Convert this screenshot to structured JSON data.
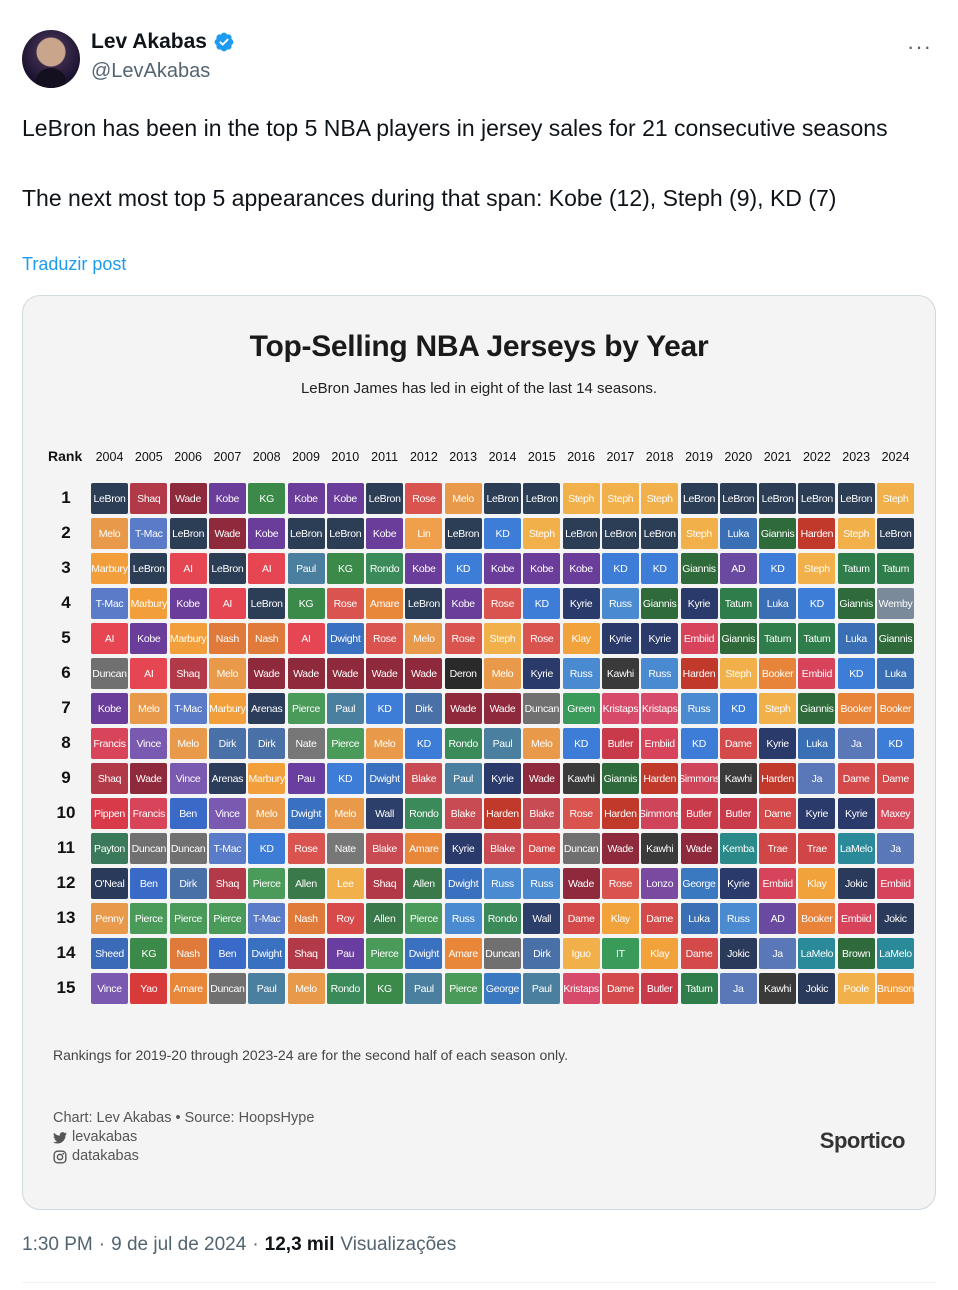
{
  "author": {
    "name": "Lev Akabas",
    "handle": "@LevAkabas",
    "more": "···"
  },
  "tweet": {
    "line1": "LeBron has been in the top 5 NBA players in jersey sales for 21 consecutive seasons",
    "line2": "The next most top 5 appearances during that span: Kobe (12), Steph (9), KD (7)",
    "translate": "Traduzir post"
  },
  "meta": {
    "time": "1:30 PM",
    "date": "9 de jul de 2024",
    "views_count": "12,3 mil",
    "views_label": "Visualizações",
    "sep": "·"
  },
  "colors": {
    "LeBron": "#2c3e55",
    "Shaq": "#b23a48",
    "Wade": "#8e2a3c",
    "Kobe": "#6a3d9a",
    "KG": "#3b8a4a",
    "Melo": "#e89a4a",
    "Steph": "#f2b04a",
    "Rose": "#d9534f",
    "Lin": "#f0a04b",
    "KD": "#3d7dd8",
    "T-Mac": "#5a7bc8",
    "Marbury": "#f29e3a",
    "AI": "#e64552",
    "Luka": "#3a6fb5",
    "Giannis": "#2f6b3a",
    "Harden": "#c0392b",
    "Paul": "#4a7f9f",
    "Rondo": "#3a8a5a",
    "Kyrie": "#2a3a6a",
    "AD": "#6a4aa0",
    "Tatum": "#2e7d4a",
    "Amare": "#e8863a",
    "Russ": "#4a8ad0",
    "Wemby": "#7a8a9a",
    "Nash": "#e07a3a",
    "Dwight": "#3a70c0",
    "Klay": "#f2a23a",
    "Embiid": "#d6435b",
    "Duncan": "#707070",
    "Deron": "#2a2a2a",
    "Booker": "#e8833a",
    "Arenas": "#2b3d5a",
    "Pierce": "#4a9a5a",
    "Dirk": "#4a70a8",
    "Kristaps": "#d84a6a",
    "Green": "#3a9a5a",
    "Francis": "#d8445a",
    "Vince": "#7a5ab0",
    "Ja": "#5a78b8",
    "Butler": "#c83a4a",
    "Dame": "#d44a4a",
    "Kawhi": "#3a3a3a",
    "Pau": "#6a3da0",
    "Blake": "#c84a52",
    "Simmons": "#d0445a",
    "Pippen": "#d83a4a",
    "Ben": "#3a6ac8",
    "Wall": "#2c3e6a",
    "Maxey": "#d44a5a",
    "Payton": "#3a7a5a",
    "Kemba": "#2a8a8a",
    "Trae": "#d04545",
    "LaMelo": "#2a8a9a",
    "O'Neal": "#2a3a5a",
    "Allen": "#3a7a4a",
    "Lee": "#f2b04a",
    "Lonzo": "#7a4aa0",
    "George": "#3a78c0",
    "Jokic": "#2a3a5a",
    "Penny": "#e89a4a",
    "Roy": "#d84a4a",
    "Sheed": "#3a6ab8",
    "IT": "#3a9a5a",
    "Iguo": "#f2b04a",
    "Brown": "#2e6a3a",
    "Yao": "#d83a3a",
    "Poole": "#f2b04a",
    "Brunson": "#f09a3a"
  },
  "chart_data": {
    "type": "table",
    "title": "Top-Selling NBA Jerseys by Year",
    "subtitle": "LeBron James has led in eight of the last 14 seasons.",
    "rank_header": "Rank",
    "years": [
      "2004",
      "2005",
      "2006",
      "2007",
      "2008",
      "2009",
      "2010",
      "2011",
      "2012",
      "2013",
      "2014",
      "2015",
      "2016",
      "2017",
      "2018",
      "2019",
      "2020",
      "2021",
      "2022",
      "2023",
      "2024"
    ],
    "ranks": [
      "1",
      "2",
      "3",
      "4",
      "5",
      "6",
      "7",
      "8",
      "9",
      "10",
      "11",
      "12",
      "13",
      "14",
      "15"
    ],
    "rows": [
      [
        "LeBron",
        "Shaq",
        "Wade",
        "Kobe",
        "KG",
        "Kobe",
        "Kobe",
        "LeBron",
        "Rose",
        "Melo",
        "LeBron",
        "LeBron",
        "Steph",
        "Steph",
        "Steph",
        "LeBron",
        "LeBron",
        "LeBron",
        "LeBron",
        "LeBron",
        "Steph"
      ],
      [
        "Melo",
        "T-Mac",
        "LeBron",
        "Wade",
        "Kobe",
        "LeBron",
        "LeBron",
        "Kobe",
        "Lin",
        "LeBron",
        "KD",
        "Steph",
        "LeBron",
        "LeBron",
        "LeBron",
        "Steph",
        "Luka",
        "Giannis",
        "Harden",
        "Steph",
        "LeBron"
      ],
      [
        "Marbury",
        "LeBron",
        "AI",
        "LeBron",
        "AI",
        "Paul",
        "KG",
        "Rondo",
        "Kobe",
        "KD",
        "Kobe",
        "Kobe",
        "Kobe",
        "KD",
        "KD",
        "Giannis",
        "AD",
        "KD",
        "Steph",
        "Tatum",
        "Tatum"
      ],
      [
        "T-Mac",
        "Marbury",
        "Kobe",
        "AI",
        "LeBron",
        "KG",
        "Rose",
        "Amare",
        "LeBron",
        "Kobe",
        "Rose",
        "KD",
        "Kyrie",
        "Russ",
        "Giannis",
        "Kyrie",
        "Tatum",
        "Luka",
        "KD",
        "Giannis",
        "Wemby"
      ],
      [
        "AI",
        "Kobe",
        "Marbury",
        "Nash",
        "Nash",
        "AI",
        "Dwight",
        "Rose",
        "Melo",
        "Rose",
        "Steph",
        "Rose",
        "Klay",
        "Kyrie",
        "Kyrie",
        "Embiid",
        "Giannis",
        "Tatum",
        "Tatum",
        "Luka",
        "Giannis"
      ],
      [
        "Duncan",
        "AI",
        "Shaq",
        "Melo",
        "Wade",
        "Wade",
        "Wade",
        "Wade",
        "Wade",
        "Deron",
        "Melo",
        "Kyrie",
        "Russ",
        "Kawhi",
        "Russ",
        "Harden",
        "Steph",
        "Booker",
        "Embiid",
        "KD",
        "Luka"
      ],
      [
        "Kobe",
        "Melo",
        "T-Mac",
        "Marbury",
        "Arenas",
        "Pierce",
        "Paul",
        "KD",
        "Dirk",
        "Wade",
        "Wade",
        "Duncan",
        "Green",
        "Kristaps",
        "Kristaps",
        "Russ",
        "KD",
        "Steph",
        "Giannis",
        "Booker",
        "Booker"
      ],
      [
        "Francis",
        "Vince",
        "Melo",
        "Dirk",
        "Dirk",
        "Nate",
        "Pierce",
        "Melo",
        "KD",
        "Rondo",
        "Paul",
        "Melo",
        "KD",
        "Butler",
        "Embiid",
        "KD",
        "Dame",
        "Kyrie",
        "Luka",
        "Ja",
        "KD"
      ],
      [
        "Shaq",
        "Wade",
        "Vince",
        "Arenas",
        "Marbury",
        "Pau",
        "KD",
        "Dwight",
        "Blake",
        "Paul",
        "Kyrie",
        "Wade",
        "Kawhi",
        "Giannis",
        "Harden",
        "Simmons",
        "Kawhi",
        "Harden",
        "Ja",
        "Dame",
        "Dame"
      ],
      [
        "Pippen",
        "Francis",
        "Ben",
        "Vince",
        "Melo",
        "Dwight",
        "Melo",
        "Wall",
        "Rondo",
        "Blake",
        "Harden",
        "Blake",
        "Rose",
        "Harden",
        "Simmons",
        "Butler",
        "Butler",
        "Dame",
        "Kyrie",
        "Kyrie",
        "Maxey"
      ],
      [
        "Payton",
        "Duncan",
        "Duncan",
        "T-Mac",
        "KD",
        "Rose",
        "Nate",
        "Blake",
        "Amare",
        "Kyrie",
        "Blake",
        "Dame",
        "Duncan",
        "Wade",
        "Kawhi",
        "Wade",
        "Kemba",
        "Trae",
        "Trae",
        "LaMelo",
        "Ja"
      ],
      [
        "O'Neal",
        "Ben",
        "Dirk",
        "Shaq",
        "Pierce",
        "Allen",
        "Lee",
        "Shaq",
        "Allen",
        "Dwight",
        "Russ",
        "Russ",
        "Wade",
        "Rose",
        "Lonzo",
        "George",
        "Kyrie",
        "Embiid",
        "Klay",
        "Jokic",
        "Embiid"
      ],
      [
        "Penny",
        "Pierce",
        "Pierce",
        "Pierce",
        "T-Mac",
        "Nash",
        "Roy",
        "Allen",
        "Pierce",
        "Russ",
        "Rondo",
        "Wall",
        "Dame",
        "Klay",
        "Dame",
        "Luka",
        "Russ",
        "AD",
        "Booker",
        "Embiid",
        "Jokic"
      ],
      [
        "Sheed",
        "KG",
        "Nash",
        "Ben",
        "Dwight",
        "Shaq",
        "Pau",
        "Pierce",
        "Dwight",
        "Amare",
        "Duncan",
        "Dirk",
        "Iguo",
        "IT",
        "Klay",
        "Dame",
        "Jokic",
        "Ja",
        "LaMelo",
        "Brown",
        "LaMelo"
      ],
      [
        "Vince",
        "Yao",
        "Amare",
        "Duncan",
        "Paul",
        "Melo",
        "Rondo",
        "KG",
        "Paul",
        "Pierce",
        "George",
        "Paul",
        "Kristaps",
        "Dame",
        "Butler",
        "Tatum",
        "Ja",
        "Kawhi",
        "Jokic",
        "Poole",
        "Brunson"
      ]
    ],
    "footnote": "Rankings for 2019-20 through 2023-24 are for the second half of each season only.",
    "credit": "Chart: Lev Akabas • Source: HoopsHype",
    "twitter": "levakabas",
    "instagram": "datakabas",
    "brand": "Sportico"
  }
}
